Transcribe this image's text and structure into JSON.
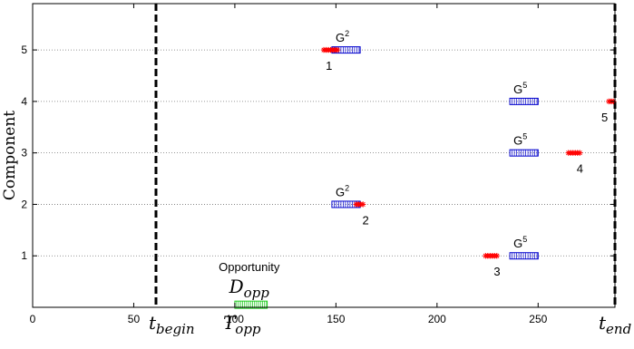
{
  "chart_data": {
    "type": "scatter",
    "ylabel": "Component",
    "xlim": [
      0,
      288
    ],
    "ylim": [
      0,
      5.9
    ],
    "x_ticks": [
      0,
      50,
      100,
      150,
      200,
      250
    ],
    "y_ticks": [
      1,
      2,
      3,
      4,
      5
    ],
    "grid": "horizontal dotted at each component",
    "colors": {
      "failure": "#ff0000",
      "group": "#0000cc",
      "opportunity": "#22cc22",
      "guide": "#000000"
    },
    "vertical_markers": [
      {
        "x": 61,
        "label": "t",
        "subscript": "begin"
      },
      {
        "x": 288,
        "label": "t",
        "subscript": "end"
      }
    ],
    "opportunity": {
      "x_start": 100,
      "x_end": 116,
      "y": 0.05,
      "title": "Opportunity",
      "duration_label": "D",
      "duration_sub": "opp",
      "time_label": "T",
      "time_sub": "opp"
    },
    "failures": [
      {
        "component": 5,
        "x_start": 144,
        "x_end": 151,
        "label": "1"
      },
      {
        "component": 2,
        "x_start": 160,
        "x_end": 164,
        "label": "2"
      },
      {
        "component": 1,
        "x_start": 224,
        "x_end": 230,
        "label": "3"
      },
      {
        "component": 3,
        "x_start": 265,
        "x_end": 271,
        "label": "4"
      },
      {
        "component": 4,
        "x_start": 285,
        "x_end": 289,
        "label": "5"
      }
    ],
    "groups": [
      {
        "component": 5,
        "x_start": 148,
        "x_end": 162,
        "label": "G",
        "sup": "2"
      },
      {
        "component": 2,
        "x_start": 148,
        "x_end": 162,
        "label": "G",
        "sup": "2"
      },
      {
        "component": 4,
        "x_start": 236,
        "x_end": 250,
        "label": "G",
        "sup": "5"
      },
      {
        "component": 3,
        "x_start": 236,
        "x_end": 250,
        "label": "G",
        "sup": "5"
      },
      {
        "component": 1,
        "x_start": 236,
        "x_end": 250,
        "label": "G",
        "sup": "5"
      }
    ]
  }
}
